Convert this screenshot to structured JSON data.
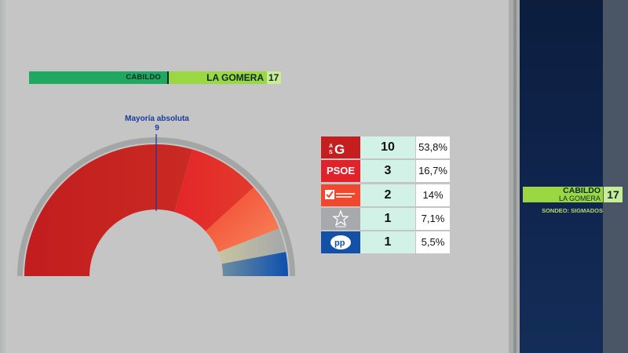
{
  "header": {
    "left": "CABILDO",
    "right": "LA GOMERA",
    "total": "17"
  },
  "majority": {
    "label": "Mayoría absoluta",
    "value": "9",
    "seats": 9
  },
  "colors": {
    "asg": "#c41e1e",
    "psoe": "#e2222b",
    "ic": "#f0482f",
    "acc": "#a7a9ac",
    "pp": "#1351a8"
  },
  "chart_data": {
    "type": "bar",
    "categories": [
      "ASG",
      "PSOE",
      "Iniciativa Canarias",
      "Coalición Canaria",
      "PP"
    ],
    "series": [
      {
        "values": [
          10,
          3,
          2,
          1,
          1
        ]
      }
    ],
    "percentages": [
      "53,8%",
      "16,7%",
      "14%",
      "7,1%",
      "5,5%"
    ],
    "total_seats": 17,
    "majority": 9
  },
  "table": {
    "rows": [
      {
        "party": "ASG",
        "logo": "asg",
        "seats": "10",
        "pct": "53,8%"
      },
      {
        "party": "PSOE",
        "logo": "PSOE",
        "seats": "3",
        "pct": "16,7%"
      },
      {
        "party": "Iniciativa Canarias",
        "logo": "Iniciativa canarias",
        "seats": "2",
        "pct": "14%"
      },
      {
        "party": "Coalición Canaria",
        "logo": "coalición canaria",
        "seats": "1",
        "pct": "7,1%"
      },
      {
        "party": "PP",
        "logo": "pp",
        "seats": "1",
        "pct": "5,5%"
      }
    ]
  },
  "side_panel": {
    "title": "CABILDO",
    "subtitle": "LA GOMERA",
    "number": "17",
    "sondeo": "SONDEO: SIGMADOS"
  }
}
